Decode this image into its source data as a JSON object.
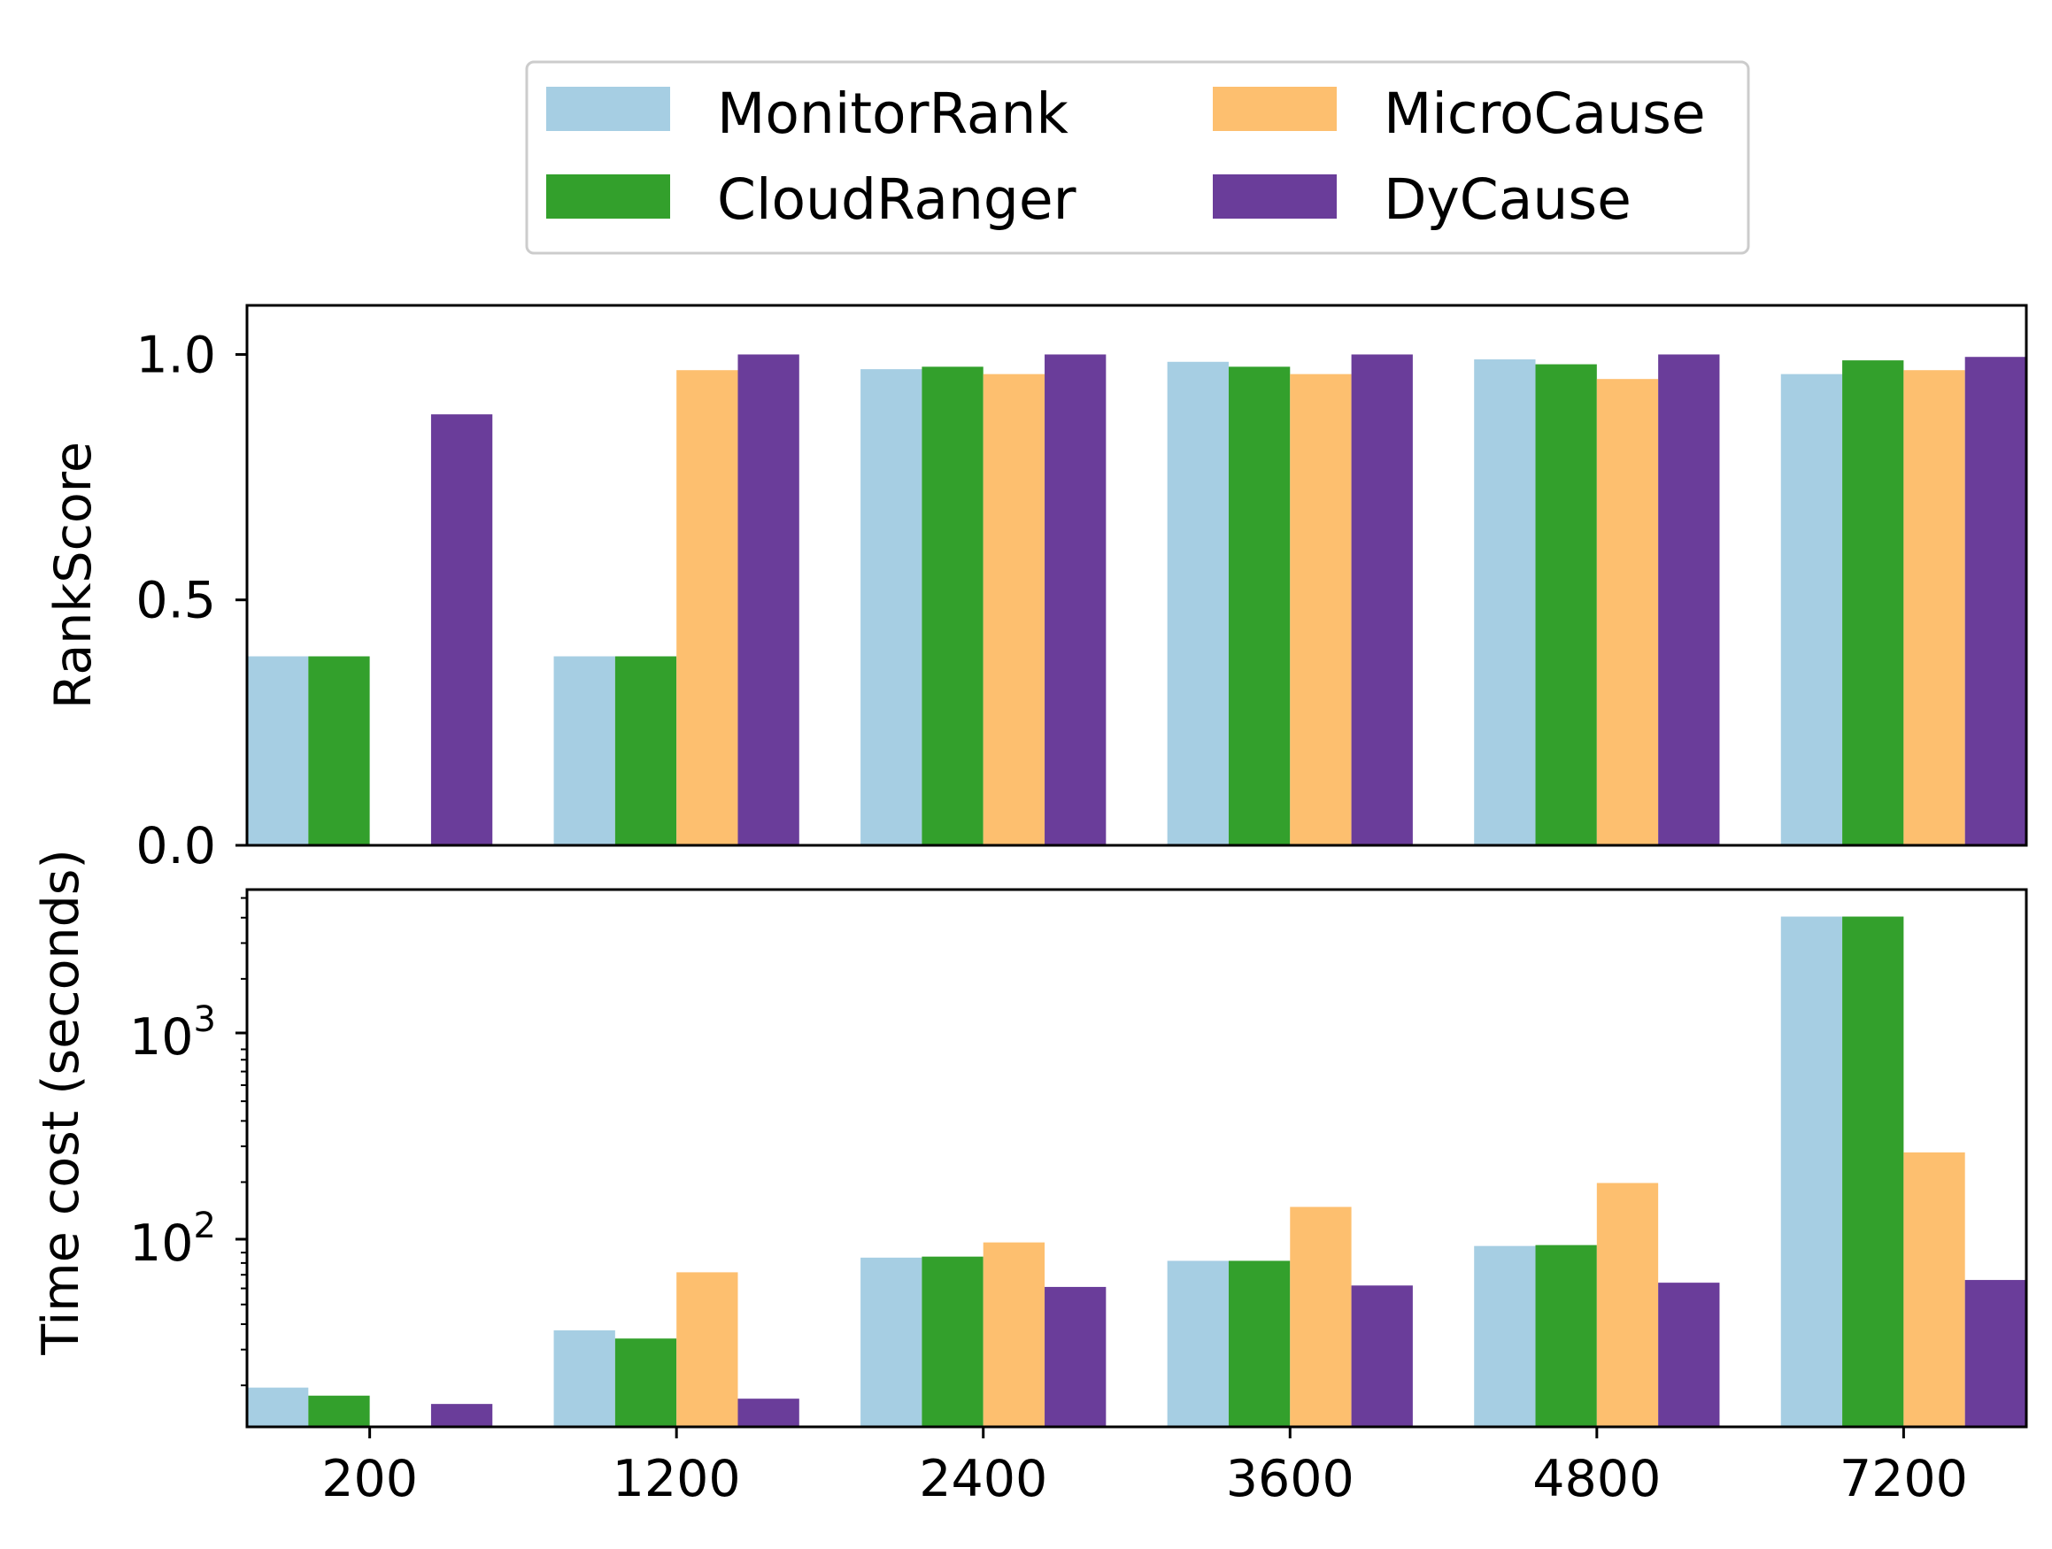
{
  "colors": {
    "MonitorRank": "#a6cee3",
    "CloudRanger": "#33a02c",
    "MicroCause": "#fdbf6f",
    "DyCause": "#6a3d9a"
  },
  "legend": {
    "items": [
      "MonitorRank",
      "MicroCause",
      "CloudRanger",
      "DyCause"
    ]
  },
  "chart_data": [
    {
      "type": "bar",
      "categories": [
        "200",
        "1200",
        "2400",
        "3600",
        "4800",
        "7200"
      ],
      "series": [
        {
          "name": "MonitorRank",
          "values": [
            0.385,
            0.385,
            0.97,
            0.985,
            0.99,
            0.96
          ]
        },
        {
          "name": "CloudRanger",
          "values": [
            0.385,
            0.385,
            0.975,
            0.975,
            0.98,
            0.988
          ]
        },
        {
          "name": "MicroCause",
          "values": [
            0,
            0.968,
            0.96,
            0.96,
            0.95,
            0.968
          ]
        },
        {
          "name": "DyCause",
          "values": [
            0.878,
            1.0,
            1.0,
            1.0,
            1.0,
            0.995
          ]
        }
      ],
      "ylabel": "RankScore",
      "ylim": [
        0,
        1.1
      ],
      "yticks": [
        0.0,
        0.5,
        1.0
      ],
      "ytick_labels": [
        "0.0",
        "0.5",
        "1.0"
      ],
      "grid": false
    },
    {
      "type": "bar",
      "yscale": "log",
      "categories": [
        "200",
        "1200",
        "2400",
        "3600",
        "4800",
        "7200"
      ],
      "series": [
        {
          "name": "MonitorRank",
          "values": [
            19.5,
            37.3,
            85,
            82,
            97,
            4050
          ]
        },
        {
          "name": "CloudRanger",
          "values": [
            17.8,
            34,
            86,
            82,
            98,
            4050
          ]
        },
        {
          "name": "MicroCause",
          "values": [
            null,
            72,
            101,
            151,
            198,
            280
          ]
        },
        {
          "name": "DyCause",
          "values": [
            16.2,
            17.2,
            61,
            62,
            64,
            66
          ]
        }
      ],
      "xlabel": "",
      "ylabel": "Time cost (seconds)",
      "ylim": [
        12.5,
        5500
      ],
      "ytick_labels": [
        "10",
        "10"
      ],
      "ytick_exponents": [
        "2",
        "3"
      ],
      "grid": false
    }
  ]
}
